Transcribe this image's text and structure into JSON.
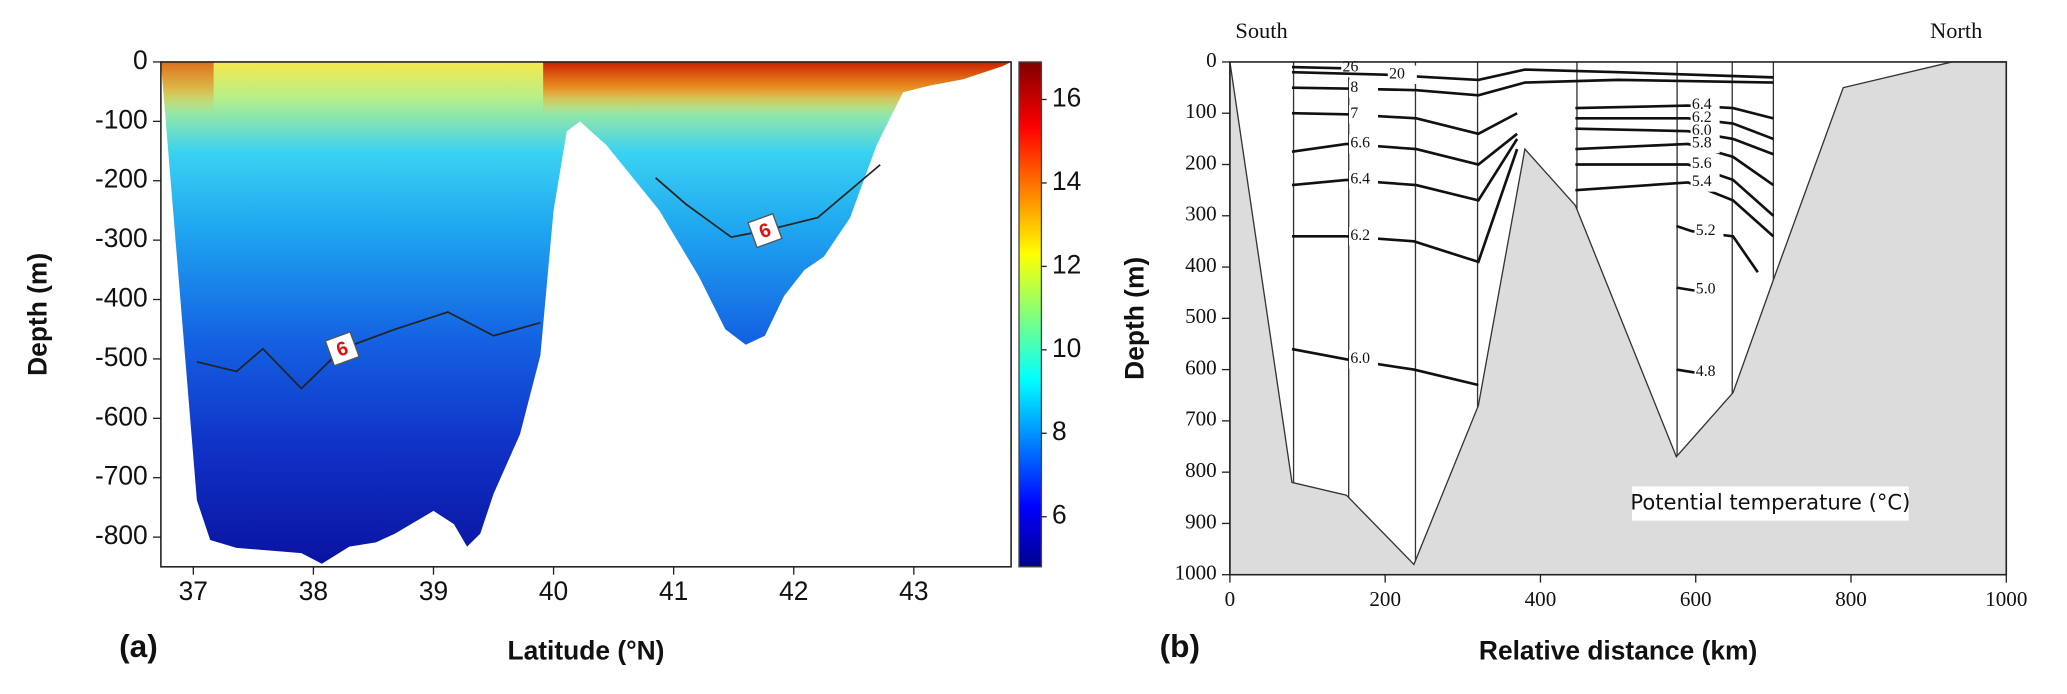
{
  "chart_data": [
    {
      "type": "section",
      "panel_label": "(a)",
      "xlabel": "Latitude (°N)",
      "ylabel": "Depth (m)",
      "xlim": [
        36.73,
        43.81
      ],
      "ylim": [
        -850,
        0
      ],
      "xticks": [
        37,
        38,
        39,
        40,
        41,
        42,
        43
      ],
      "yticks": [
        0,
        -100,
        -200,
        -300,
        -400,
        -500,
        -600,
        -700,
        -800
      ],
      "colormap": "jet",
      "clim": [
        4.8,
        16.9
      ],
      "cticks": [
        6,
        8,
        10,
        12,
        14,
        16
      ],
      "bottom": {
        "x": [
          36.73,
          37.03,
          37.14,
          37.36,
          37.9,
          38.07,
          38.3,
          38.52,
          38.68,
          39.0,
          39.17,
          39.28,
          39.39,
          39.5,
          39.72,
          39.89,
          40.0,
          40.11,
          40.22,
          40.44,
          40.88,
          41.21,
          41.43,
          41.6,
          41.76,
          41.92,
          42.09,
          42.25,
          42.47,
          42.69,
          42.91,
          43.13,
          43.41,
          43.74,
          43.81
        ],
        "y": [
          0,
          -738,
          -805,
          -818,
          -827,
          -845,
          -816,
          -809,
          -794,
          -756,
          -778,
          -816,
          -794,
          -727,
          -627,
          -494,
          -250,
          -117,
          -100,
          -140,
          -250,
          -361,
          -450,
          -476,
          -461,
          -394,
          -350,
          -328,
          -262,
          -140,
          -51,
          -40,
          -29,
          -7,
          0
        ]
      },
      "contours": [
        {
          "label": "6",
          "x": [
            37.03,
            37.36,
            37.58,
            37.9,
            38.24,
            38.68,
            39.12,
            39.5,
            39.89
          ],
          "y": [
            -505,
            -521,
            -483,
            -550,
            -483,
            -450,
            -421,
            -461,
            -439
          ]
        },
        {
          "label": "6",
          "x": [
            40.85,
            41.1,
            41.48,
            41.76,
            42.2,
            42.72
          ],
          "y": [
            -195,
            -239,
            -295,
            -284,
            -262,
            -173
          ]
        }
      ]
    },
    {
      "type": "section",
      "panel_label": "(b)",
      "xlabel": "Relative distance (km)",
      "ylabel": "Depth (m)",
      "xlim": [
        0,
        1000
      ],
      "ylim": [
        1000,
        0
      ],
      "xticks": [
        0,
        200,
        400,
        600,
        800,
        1000
      ],
      "yticks": [
        0,
        100,
        200,
        300,
        400,
        500,
        600,
        700,
        800,
        900,
        1000
      ],
      "topography_color": "#dcdcdc",
      "annotations": [
        "South",
        "North",
        "Potential temperature (°C)"
      ],
      "stations": [
        82,
        153,
        239,
        319,
        447,
        576,
        647,
        700
      ],
      "bottom": {
        "x": [
          0,
          80,
          150,
          237,
          320,
          380,
          445,
          575,
          648,
          700,
          790,
          930,
          1000
        ],
        "y": [
          0,
          820,
          845,
          980,
          670,
          170,
          280,
          770,
          645,
          425,
          50,
          0,
          0
        ]
      },
      "contours": [
        {
          "label": "26",
          "x": [
            80,
            140,
            150
          ],
          "y": [
            10,
            12,
            12
          ]
        },
        {
          "label": "20",
          "x": [
            80,
            200,
            320,
            380,
            500,
            700
          ],
          "y": [
            20,
            25,
            35,
            15,
            20,
            30
          ]
        },
        {
          "label": "8",
          "x": [
            80,
            150,
            240,
            320,
            380,
            500,
            700
          ],
          "y": [
            50,
            52,
            55,
            65,
            40,
            35,
            40
          ]
        },
        {
          "label": "7",
          "x": [
            80,
            150,
            240,
            320,
            370
          ],
          "y": [
            100,
            102,
            110,
            140,
            100
          ]
        },
        {
          "label": "6.6",
          "x": [
            80,
            150,
            240,
            320,
            370
          ],
          "y": [
            175,
            160,
            170,
            200,
            140
          ]
        },
        {
          "label": "6.4",
          "x": [
            80,
            150,
            240,
            320,
            370
          ],
          "y": [
            240,
            230,
            240,
            270,
            150
          ]
        },
        {
          "label": "6.2",
          "x": [
            80,
            150,
            237,
            320,
            370
          ],
          "y": [
            340,
            340,
            350,
            390,
            170
          ]
        },
        {
          "label": "6.0",
          "x": [
            80,
            150,
            237,
            320
          ],
          "y": [
            560,
            580,
            600,
            630
          ]
        },
        {
          "label": "6.4",
          "x": [
            445,
            590,
            648,
            700
          ],
          "y": [
            90,
            85,
            90,
            110
          ]
        },
        {
          "label": "6.2",
          "x": [
            445,
            590,
            648,
            700
          ],
          "y": [
            110,
            110,
            120,
            150
          ]
        },
        {
          "label": "6.0",
          "x": [
            445,
            590,
            648,
            700
          ],
          "y": [
            130,
            135,
            150,
            180
          ]
        },
        {
          "label": "5.8",
          "x": [
            445,
            590,
            648,
            700
          ],
          "y": [
            170,
            160,
            185,
            240
          ]
        },
        {
          "label": "5.6",
          "x": [
            445,
            590,
            648,
            700
          ],
          "y": [
            200,
            200,
            230,
            300
          ]
        },
        {
          "label": "5.4",
          "x": [
            445,
            590,
            648,
            700
          ],
          "y": [
            250,
            235,
            270,
            340
          ]
        },
        {
          "label": "5.2",
          "x": [
            575,
            595,
            648,
            680
          ],
          "y": [
            320,
            330,
            340,
            410
          ]
        },
        {
          "label": "5.0",
          "x": [
            575,
            595,
            620
          ],
          "y": [
            440,
            445,
            450
          ]
        },
        {
          "label": "4.8",
          "x": [
            575,
            595,
            620
          ],
          "y": [
            600,
            605,
            610
          ]
        }
      ]
    }
  ]
}
